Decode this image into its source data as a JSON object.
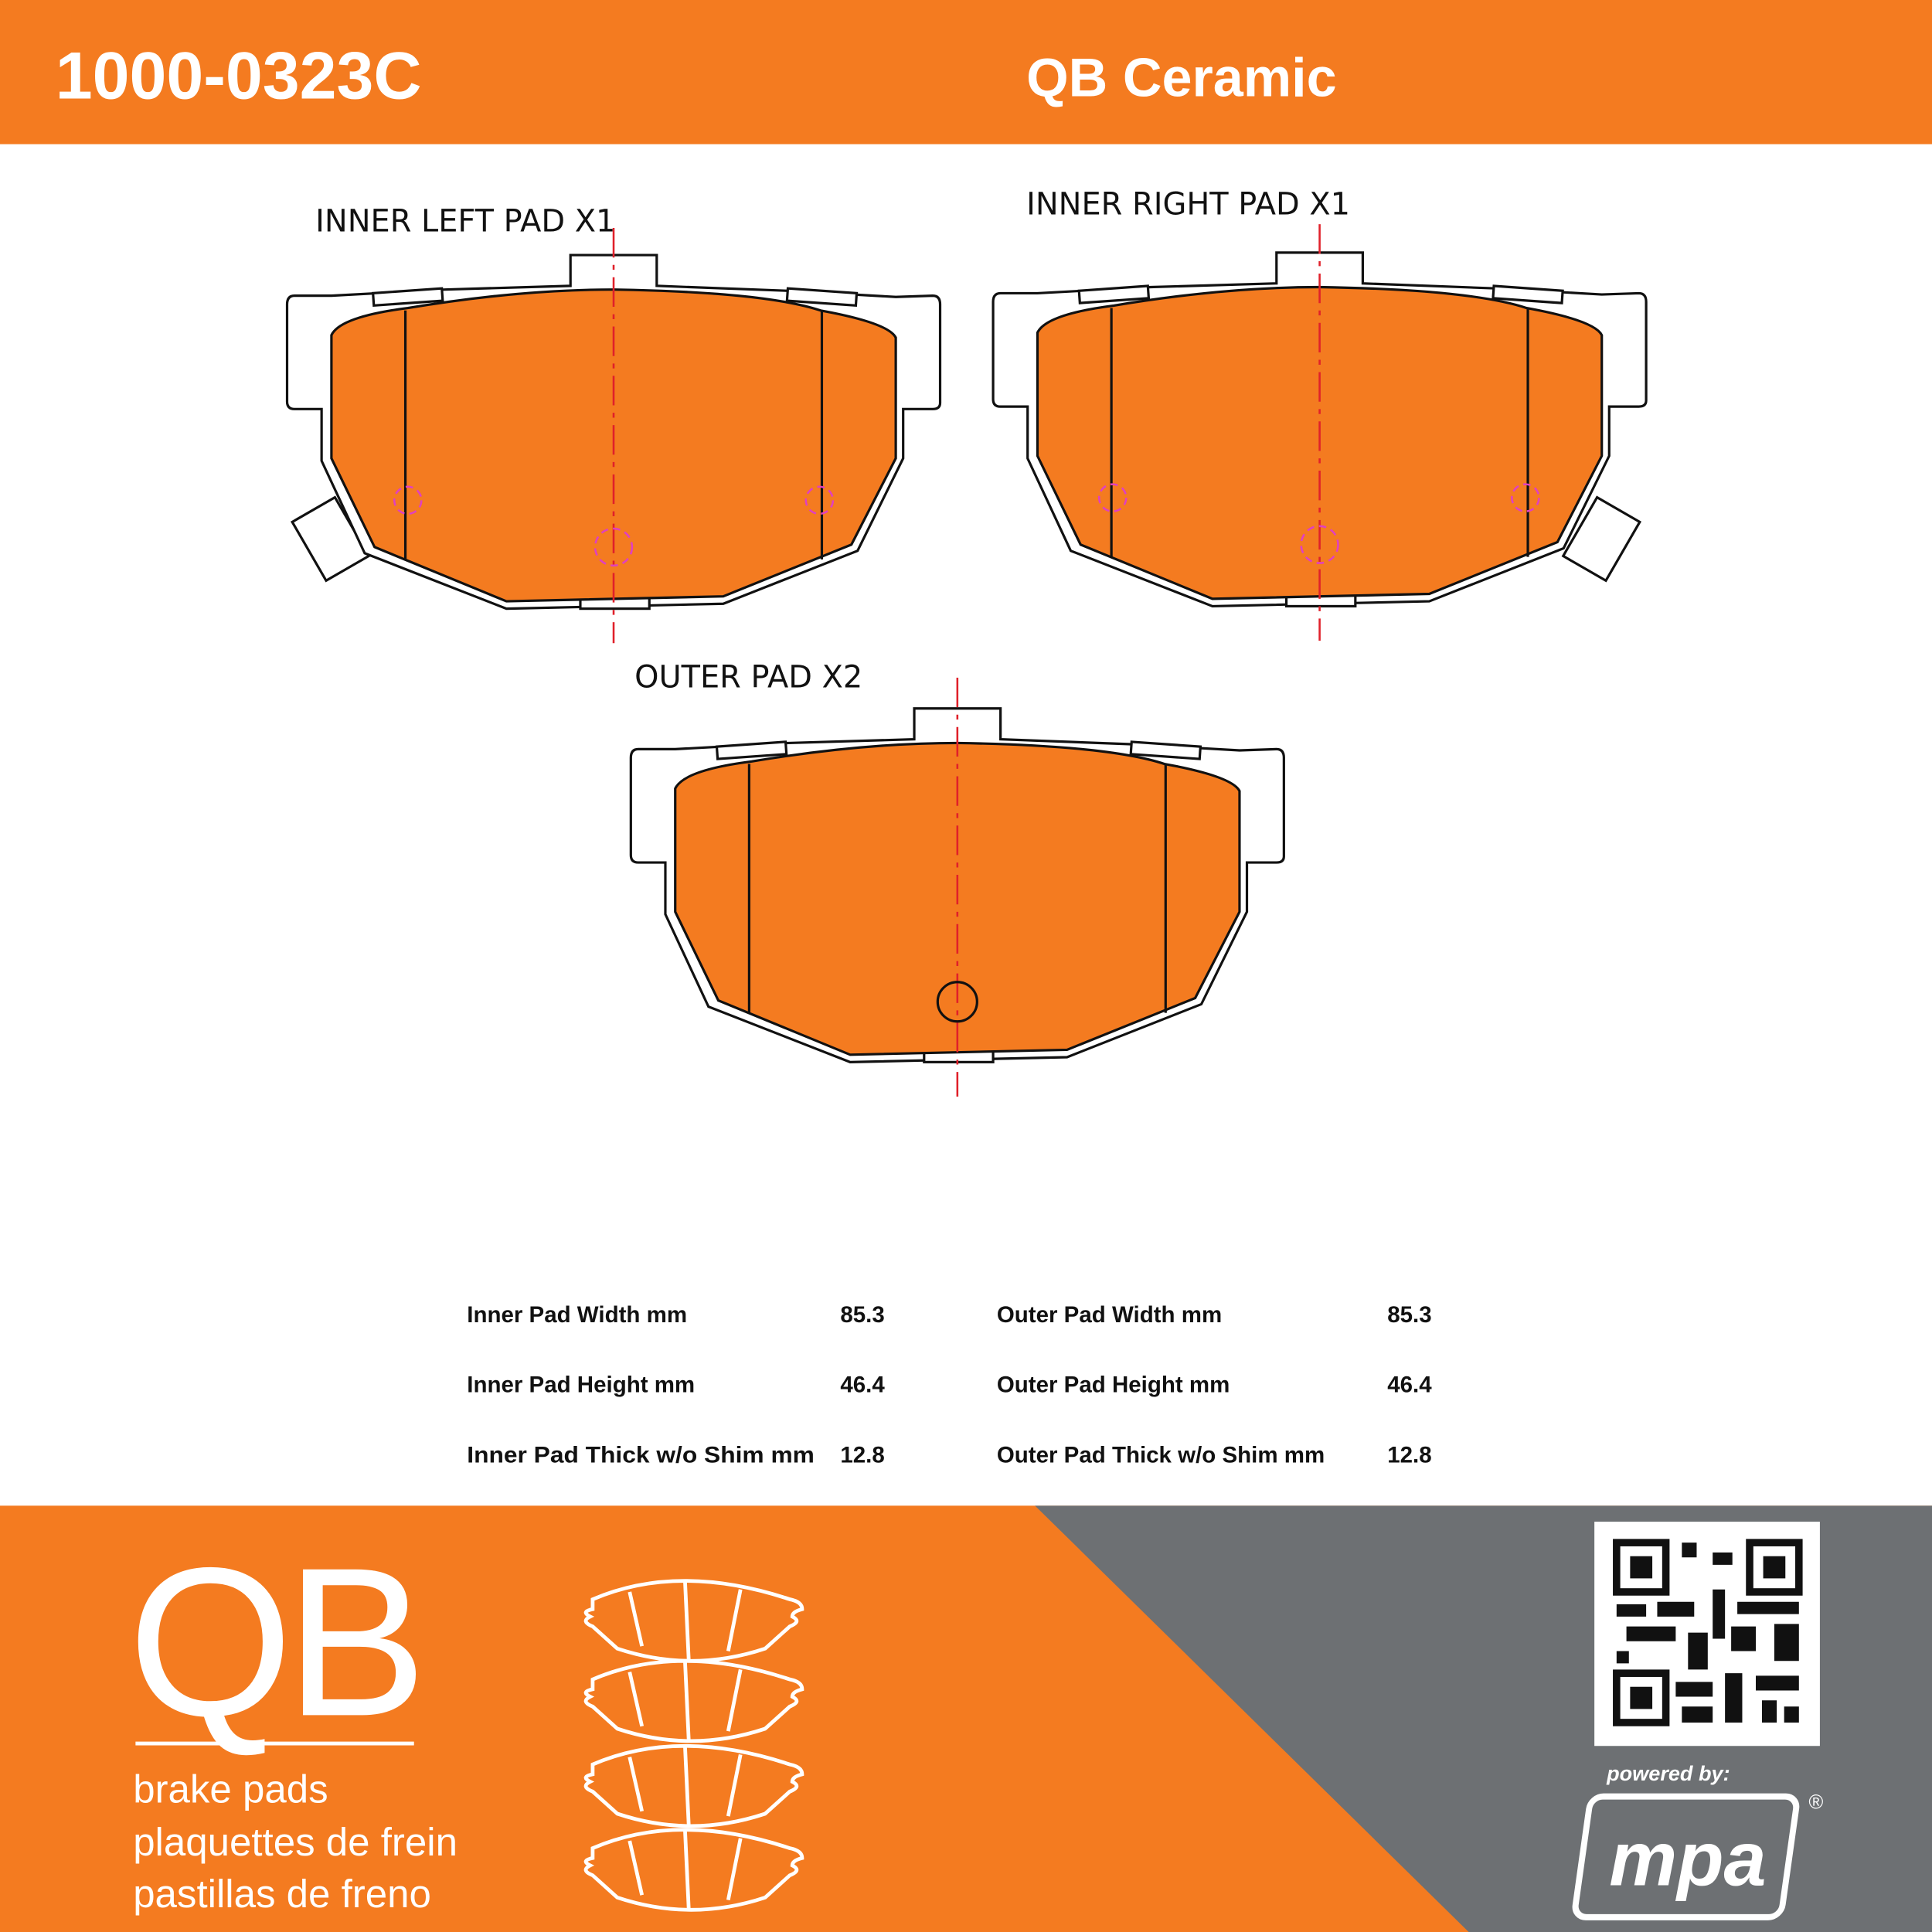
{
  "header": {
    "part_number": "1000-0323C",
    "product_line": "QB Ceramic"
  },
  "drawings": [
    {
      "label": "INNER LEFT PAD X1"
    },
    {
      "label": "INNER RIGHT PAD X1"
    },
    {
      "label": "OUTER PAD X2"
    }
  ],
  "specs": {
    "rows": [
      [
        "Inner Pad Width mm",
        85.3,
        "Outer Pad Width mm",
        85.3
      ],
      [
        "Inner Pad Height mm",
        46.4,
        "Outer Pad Height mm",
        46.4
      ],
      [
        "Inner Pad Thick w/o Shim mm",
        12.8,
        "Outer Pad Thick w/o Shim mm",
        12.8
      ]
    ]
  },
  "footer": {
    "logo": "QB",
    "lines": [
      "brake pads",
      "plaquettes de frein",
      "pastillas de freno"
    ],
    "powered_by": "powered by:",
    "brand": "mpa",
    "registered": "®"
  }
}
